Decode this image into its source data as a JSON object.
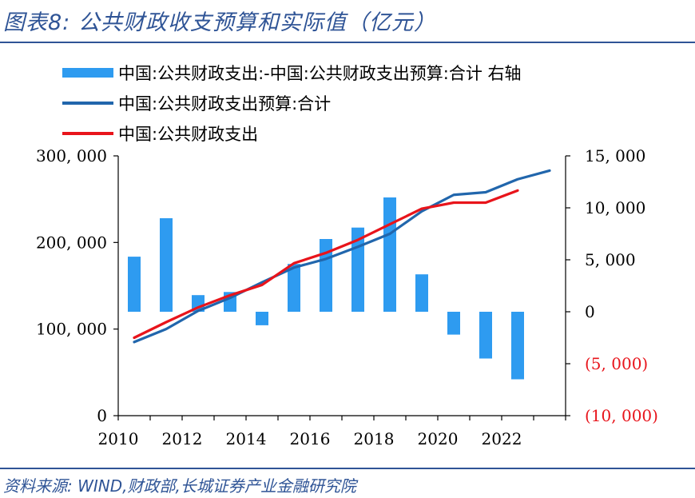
{
  "title": "图表8:  公共财政收支预算和实际值（亿元）",
  "source": "资料来源:  WIND,财政部,长城证券产业金融研究院",
  "chart_data": {
    "type": "bar+line",
    "legend": [
      {
        "label": "中国:公共财政支出:-中国:公共财政支出预算:合计 右轴",
        "kind": "bar",
        "color": "#2e9bf0"
      },
      {
        "label": "中国:公共财政支出预算:合计",
        "kind": "line",
        "color": "#2166ac"
      },
      {
        "label": "中国:公共财政支出",
        "kind": "line",
        "color": "#e8141b"
      }
    ],
    "x_ticks": [
      "2010",
      "2012",
      "2014",
      "2016",
      "2018",
      "2020",
      "2022"
    ],
    "y_left": {
      "ylim": [
        0,
        300000
      ],
      "ticks": [
        "0",
        "100, 000",
        "200, 000",
        "300, 000"
      ],
      "tick_values": [
        0,
        100000,
        200000,
        300000
      ]
    },
    "y_right": {
      "ylim": [
        -10000,
        15000
      ],
      "ticks": [
        "(10, 000)",
        "(5, 000)",
        "0",
        "5, 000",
        "10, 000",
        "15, 000"
      ],
      "tick_values": [
        -10000,
        -5000,
        0,
        5000,
        10000,
        15000
      ],
      "negative_color": "#e8141b",
      "positive_color": "#000000"
    },
    "series": [
      {
        "name": "中国:公共财政支出:-中国:公共财政支出预算:合计 右轴",
        "type": "bar",
        "axis": "right",
        "x": [
          2010,
          2011,
          2012,
          2013,
          2014,
          2015,
          2016,
          2017,
          2018,
          2019,
          2020,
          2021,
          2022
        ],
        "values": [
          5300,
          9000,
          1600,
          1900,
          -1300,
          4600,
          7000,
          8100,
          11000,
          3600,
          -2200,
          -4500,
          -6500
        ]
      },
      {
        "name": "中国:公共财政支出预算:合计",
        "type": "line",
        "axis": "left",
        "x": [
          2010,
          2011,
          2012,
          2013,
          2014,
          2015,
          2016,
          2017,
          2018,
          2019,
          2020,
          2021,
          2022,
          2023
        ],
        "values": [
          85000,
          100000,
          121000,
          136000,
          154000,
          171000,
          181000,
          195000,
          210000,
          236000,
          255000,
          258000,
          273000,
          283000
        ]
      },
      {
        "name": "中国:公共财政支出",
        "type": "line",
        "axis": "left",
        "x": [
          2010,
          2011,
          2012,
          2013,
          2014,
          2015,
          2016,
          2017,
          2018,
          2019,
          2020,
          2021,
          2022
        ],
        "values": [
          90000,
          108000,
          125000,
          139000,
          151000,
          176000,
          188000,
          203000,
          221000,
          239000,
          246000,
          246000,
          260000
        ]
      }
    ]
  }
}
